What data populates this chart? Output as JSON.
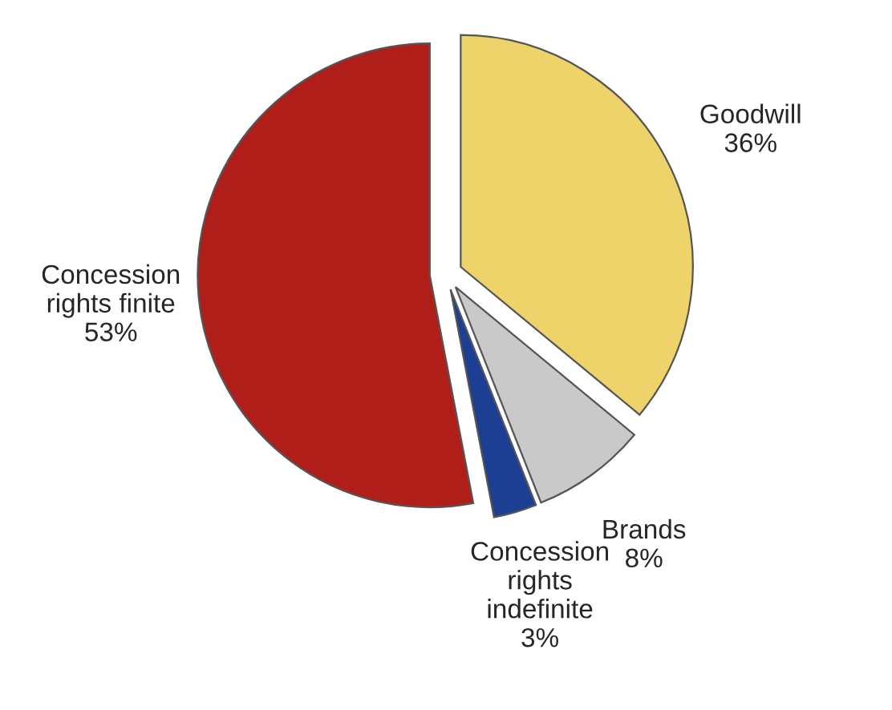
{
  "chart_data": {
    "type": "pie",
    "categories": [
      "Goodwill",
      "Brands",
      "Concession\nrights\nindefinite",
      "Concession\nrights finite"
    ],
    "values": [
      36,
      8,
      3,
      53
    ],
    "value_labels": [
      "36%",
      "8%",
      "3%",
      "53%"
    ],
    "colors": [
      "#eed36a",
      "#c9c9c9",
      "#1c3f94",
      "#b01e1a"
    ]
  }
}
